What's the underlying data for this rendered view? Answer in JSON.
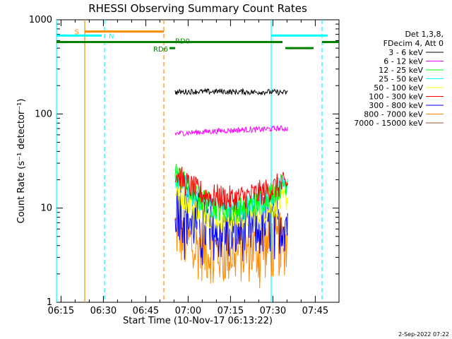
{
  "chart_data": {
    "type": "line",
    "title": "RHESSI Observing Summary Count Rates",
    "xlabel": "Start Time (10-Nov-17 06:13:22)",
    "ylabel": "Count Rate (s⁻¹ detector⁻¹)",
    "x_unit": "minutes after 06:13:22 (10-Nov-17)",
    "xlim": [
      0,
      100
    ],
    "ylim": [
      1,
      1000
    ],
    "yscale": "log",
    "x_ticks": [
      {
        "value": 1.6,
        "label": "06:15"
      },
      {
        "value": 16.6,
        "label": "06:30"
      },
      {
        "value": 31.6,
        "label": "06:45"
      },
      {
        "value": 46.6,
        "label": "07:00"
      },
      {
        "value": 61.6,
        "label": "07:15"
      },
      {
        "value": 76.6,
        "label": "07:30"
      },
      {
        "value": 91.6,
        "label": "07:45"
      }
    ],
    "y_ticks": [
      {
        "value": 1,
        "label": "1"
      },
      {
        "value": 10,
        "label": "10"
      },
      {
        "value": 100,
        "label": "100"
      },
      {
        "value": 1000,
        "label": "1000"
      }
    ],
    "legend": {
      "position": "right",
      "header": [
        "Det 1,3,8,",
        "FDecim 4, Att 0"
      ]
    },
    "series": [
      {
        "name": "3 - 6 keV",
        "color": "#000000",
        "x": [
          42,
          46,
          50,
          54,
          58,
          62,
          66,
          70,
          74,
          78,
          82
        ],
        "values": [
          170,
          172,
          173,
          172,
          174,
          171,
          172,
          170,
          172,
          170,
          168
        ]
      },
      {
        "name": "6 - 12 keV",
        "color": "#ff00ff",
        "x": [
          42,
          46,
          50,
          54,
          58,
          62,
          66,
          70,
          74,
          78,
          82
        ],
        "values": [
          62,
          63,
          64,
          65,
          66,
          67,
          68,
          68,
          69,
          70,
          70
        ]
      },
      {
        "name": "12 - 25 keV",
        "color": "#00ff00",
        "x": [
          42,
          46,
          50,
          54,
          58,
          62,
          66,
          70,
          74,
          78,
          82
        ],
        "values": [
          24,
          17,
          13,
          11,
          10,
          9.5,
          10,
          11,
          13,
          16,
          20
        ]
      },
      {
        "name": "25 - 50 keV",
        "color": "#00ffff",
        "x": [
          42,
          46,
          50,
          54,
          58,
          62,
          66,
          70,
          74,
          78,
          82
        ],
        "values": [
          22,
          16,
          13,
          11,
          10,
          9.5,
          10,
          11,
          12,
          15,
          18
        ]
      },
      {
        "name": "50 - 100 keV",
        "color": "#ffff00",
        "x": [
          42,
          46,
          50,
          54,
          58,
          62,
          66,
          70,
          74,
          78,
          82
        ],
        "values": [
          16,
          12,
          9.5,
          8.5,
          7.8,
          7.5,
          7.8,
          8.5,
          9.5,
          11,
          13
        ]
      },
      {
        "name": "100 - 300 keV",
        "color": "#ff0000",
        "x": [
          42,
          46,
          50,
          54,
          58,
          62,
          66,
          70,
          74,
          78,
          82
        ],
        "values": [
          24,
          18,
          15,
          13.5,
          13,
          12.5,
          13,
          14,
          15,
          17,
          18
        ]
      },
      {
        "name": "300 - 800 keV",
        "color": "#0000ff",
        "x": [
          42,
          46,
          50,
          54,
          58,
          62,
          66,
          70,
          74,
          78,
          82
        ],
        "values": [
          11,
          8.5,
          7,
          6.3,
          6,
          5.8,
          6,
          6.2,
          6.6,
          7.2,
          7.6
        ]
      },
      {
        "name": "800 - 7000 keV",
        "color": "#ff8c00",
        "x": [
          42,
          46,
          50,
          54,
          58,
          62,
          66,
          70,
          74,
          78,
          82
        ],
        "values": [
          6.2,
          4.5,
          3.8,
          3.5,
          3.4,
          3.4,
          3.5,
          3.6,
          3.8,
          4.0,
          4.2
        ]
      },
      {
        "name": "7000 - 15000 keV",
        "color": "#a0522d",
        "x": [],
        "values": []
      }
    ],
    "annotations": [
      {
        "label": "S",
        "color": "#ff8c00",
        "x_start": 10,
        "x_end": 38,
        "level": 750
      },
      {
        "label": "N",
        "color": "#00ffff",
        "x_start": 0,
        "x_end": 16,
        "level": 680
      },
      {
        "label": "N",
        "color": "#00ffff",
        "x_start": 76,
        "x_end": 96,
        "level": 680
      },
      {
        "label": "RD6",
        "color": "#008000",
        "x_start": 40,
        "x_end": 42,
        "level": 500
      },
      {
        "label": "RD0",
        "color": "#008000",
        "x_start": 0,
        "x_end": 80,
        "level": 580
      }
    ],
    "extra_bars": [
      {
        "color": "#008000",
        "x_start": 81,
        "x_end": 91,
        "level": 500
      },
      {
        "color": "#008000",
        "x_start": 94,
        "x_end": 100,
        "level": 580
      }
    ],
    "vertical_lines": [
      {
        "x": 0,
        "color": "#00ffff",
        "style": "solid"
      },
      {
        "x": 10,
        "color": "#ff8c00",
        "style": "solid"
      },
      {
        "x": 17,
        "color": "#00ffff",
        "style": "dashed"
      },
      {
        "x": 38,
        "color": "#ff8c00",
        "style": "dashed"
      },
      {
        "x": 76,
        "color": "#00ffff",
        "style": "solid"
      },
      {
        "x": 94,
        "color": "#00ffff",
        "style": "dashed"
      }
    ],
    "footer": "2-Sep-2022 07:22"
  }
}
